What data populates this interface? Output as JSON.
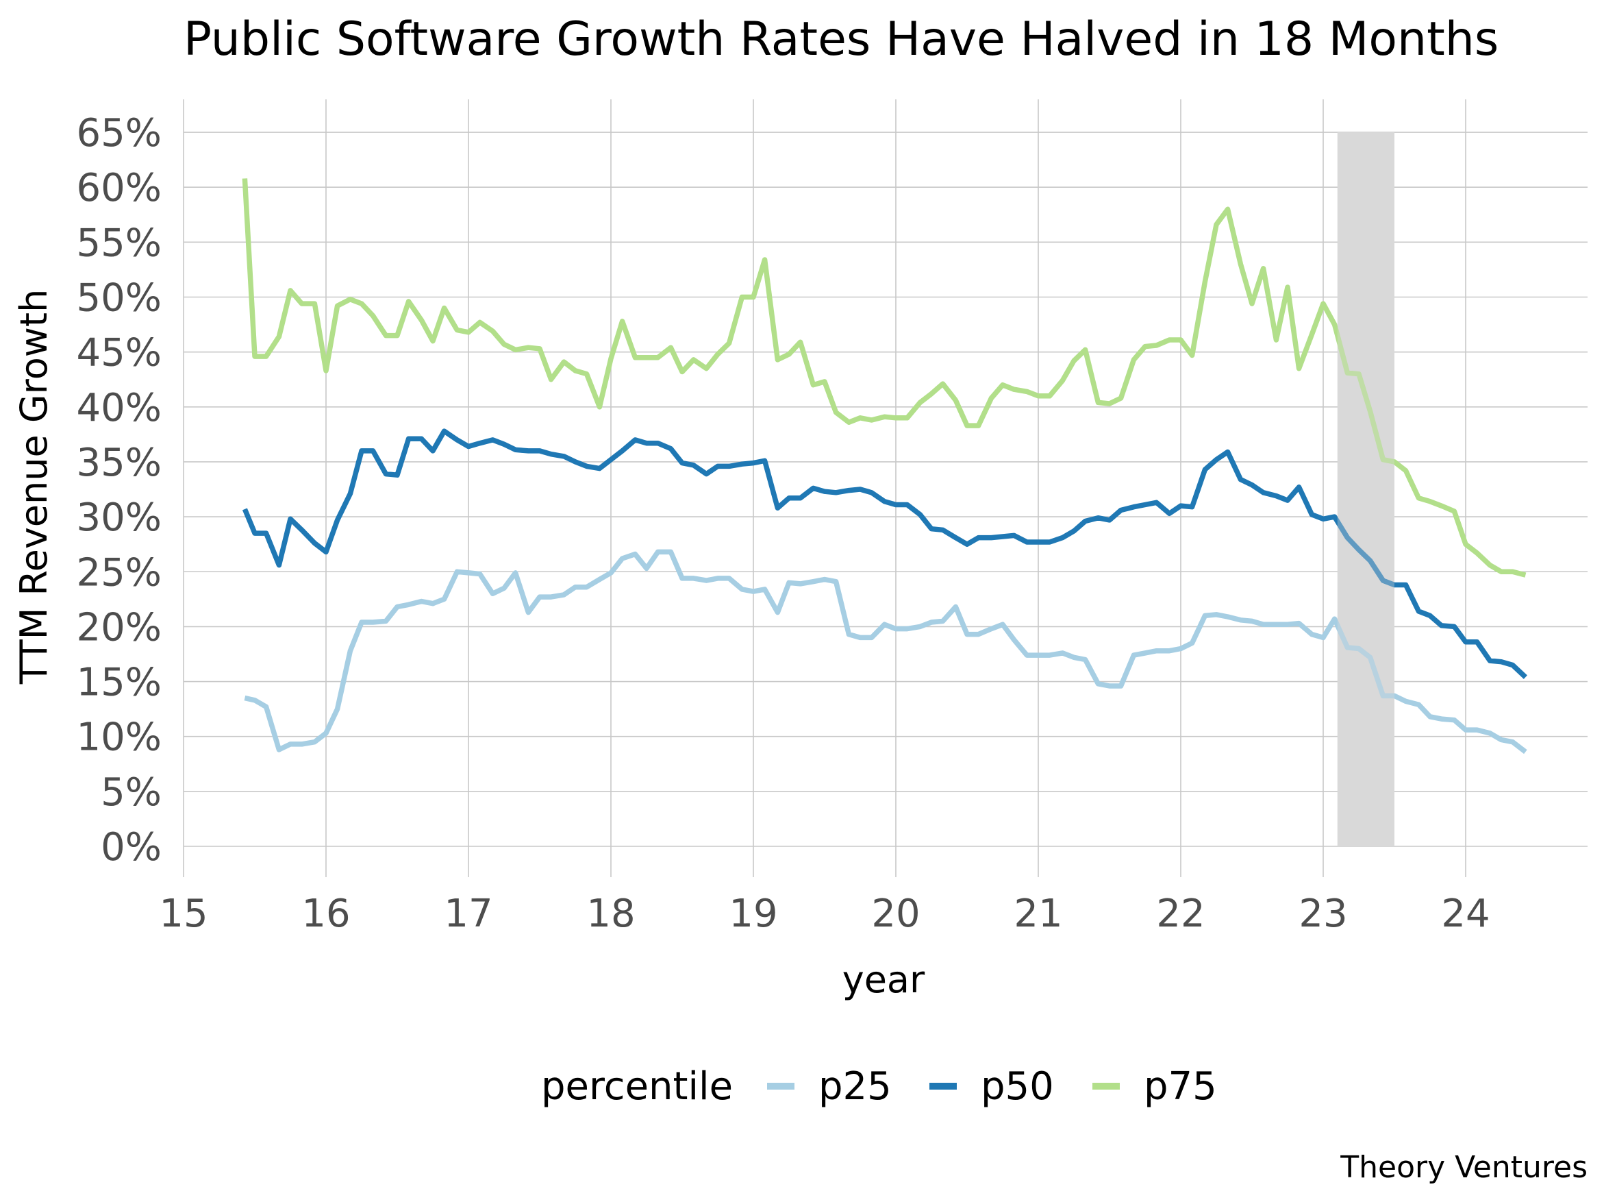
{
  "chart_data": {
    "type": "line",
    "title": "Public Software Growth Rates Have Halved in 18 Months",
    "xlabel": "year",
    "ylabel": "TTM Revenue Growth",
    "x_ticks": [
      "15",
      "16",
      "17",
      "18",
      "19",
      "20",
      "21",
      "22",
      "23",
      "24"
    ],
    "y_ticks": [
      "0%",
      "5%",
      "10%",
      "15%",
      "20%",
      "25%",
      "30%",
      "35%",
      "40%",
      "45%",
      "50%",
      "55%",
      "60%",
      "65%"
    ],
    "xlim": [
      15,
      24.9
    ],
    "ylim": [
      0,
      65
    ],
    "grid": true,
    "legend_title": "percentile",
    "legend_position": "bottom",
    "caption": "Theory Ventures",
    "highlight_band": {
      "x_start": 23.1,
      "x_end": 23.5,
      "color": "#d9d9d9"
    },
    "series": [
      {
        "name": "p25",
        "color": "#a6cee3",
        "x": [
          15.43,
          15.5,
          15.58,
          15.67,
          15.75,
          15.83,
          15.92,
          16.0,
          16.08,
          16.17,
          16.25,
          16.33,
          16.42,
          16.5,
          16.58,
          16.67,
          16.75,
          16.83,
          16.92,
          17.0,
          17.08,
          17.17,
          17.25,
          17.33,
          17.42,
          17.5,
          17.58,
          17.67,
          17.75,
          17.83,
          17.92,
          18.0,
          18.08,
          18.17,
          18.25,
          18.33,
          18.42,
          18.5,
          18.58,
          18.67,
          18.75,
          18.83,
          18.92,
          19.0,
          19.08,
          19.17,
          19.25,
          19.33,
          19.42,
          19.5,
          19.58,
          19.67,
          19.75,
          19.83,
          19.92,
          20.0,
          20.08,
          20.17,
          20.25,
          20.33,
          20.42,
          20.5,
          20.58,
          20.67,
          20.75,
          20.83,
          20.92,
          21.0,
          21.08,
          21.17,
          21.25,
          21.33,
          21.42,
          21.5,
          21.58,
          21.67,
          21.75,
          21.83,
          21.92,
          22.0,
          22.08,
          22.17,
          22.25,
          22.33,
          22.42,
          22.5,
          22.58,
          22.67,
          22.75,
          22.83,
          22.92,
          23.0,
          23.08,
          23.17,
          23.25,
          23.33,
          23.42,
          23.5,
          23.58,
          23.67,
          23.75,
          23.83,
          23.92,
          24.0,
          24.08,
          24.17,
          24.25,
          24.33,
          24.42
        ],
        "values": [
          13.5,
          13.3,
          12.7,
          8.8,
          9.3,
          9.3,
          9.5,
          10.3,
          12.5,
          17.8,
          20.4,
          20.4,
          20.5,
          21.8,
          22.0,
          22.3,
          22.1,
          22.5,
          25.0,
          24.9,
          24.8,
          23.0,
          23.5,
          24.9,
          21.3,
          22.7,
          22.7,
          22.9,
          23.6,
          23.6,
          24.3,
          24.9,
          26.2,
          26.6,
          25.3,
          26.8,
          26.8,
          24.4,
          24.4,
          24.2,
          24.4,
          24.4,
          23.4,
          23.2,
          23.4,
          21.3,
          24.0,
          23.9,
          24.1,
          24.3,
          24.1,
          19.3,
          19.0,
          19.0,
          20.2,
          19.8,
          19.8,
          20.0,
          20.4,
          20.5,
          21.8,
          19.3,
          19.3,
          19.8,
          20.2,
          18.8,
          17.4,
          17.4,
          17.4,
          17.6,
          17.2,
          17.0,
          14.8,
          14.6,
          14.6,
          17.4,
          17.6,
          17.8,
          17.8,
          18.0,
          18.5,
          21.0,
          21.1,
          20.9,
          20.6,
          20.5,
          20.2,
          20.2,
          20.2,
          20.3,
          19.3,
          19.0,
          20.7,
          18.1,
          18.0,
          17.2,
          13.7,
          13.7,
          13.2,
          12.9,
          11.8,
          11.6,
          11.5,
          10.6,
          10.6,
          10.3,
          9.7,
          9.5,
          8.6
        ]
      },
      {
        "name": "p50",
        "color": "#1f78b4",
        "x": [
          15.43,
          15.5,
          15.58,
          15.67,
          15.75,
          15.83,
          15.92,
          16.0,
          16.08,
          16.17,
          16.25,
          16.33,
          16.42,
          16.5,
          16.58,
          16.67,
          16.75,
          16.83,
          16.92,
          17.0,
          17.08,
          17.17,
          17.25,
          17.33,
          17.42,
          17.5,
          17.58,
          17.67,
          17.75,
          17.83,
          17.92,
          18.0,
          18.08,
          18.17,
          18.25,
          18.33,
          18.42,
          18.5,
          18.58,
          18.67,
          18.75,
          18.83,
          18.92,
          19.0,
          19.08,
          19.17,
          19.25,
          19.33,
          19.42,
          19.5,
          19.58,
          19.67,
          19.75,
          19.83,
          19.92,
          20.0,
          20.08,
          20.17,
          20.25,
          20.33,
          20.42,
          20.5,
          20.58,
          20.67,
          20.75,
          20.83,
          20.92,
          21.0,
          21.08,
          21.17,
          21.25,
          21.33,
          21.42,
          21.5,
          21.58,
          21.67,
          21.75,
          21.83,
          21.92,
          22.0,
          22.08,
          22.17,
          22.25,
          22.33,
          22.42,
          22.5,
          22.58,
          22.67,
          22.75,
          22.83,
          22.92,
          23.0,
          23.08,
          23.17,
          23.25,
          23.33,
          23.42,
          23.5,
          23.58,
          23.67,
          23.75,
          23.83,
          23.92,
          24.0,
          24.08,
          24.17,
          24.25,
          24.33,
          24.42
        ],
        "values": [
          30.7,
          28.5,
          28.5,
          25.6,
          29.8,
          28.8,
          27.6,
          26.8,
          29.7,
          32.1,
          36.0,
          36.0,
          33.9,
          33.8,
          37.1,
          37.1,
          36.0,
          37.8,
          37.0,
          36.4,
          36.7,
          37.0,
          36.6,
          36.1,
          36.0,
          36.0,
          35.7,
          35.5,
          35.0,
          34.6,
          34.4,
          35.2,
          36.0,
          37.0,
          36.7,
          36.7,
          36.2,
          34.9,
          34.7,
          33.9,
          34.6,
          34.6,
          34.8,
          34.9,
          35.1,
          30.8,
          31.7,
          31.7,
          32.6,
          32.3,
          32.2,
          32.4,
          32.5,
          32.2,
          31.4,
          31.1,
          31.1,
          30.2,
          28.9,
          28.8,
          28.1,
          27.5,
          28.1,
          28.1,
          28.2,
          28.3,
          27.7,
          27.7,
          27.7,
          28.1,
          28.7,
          29.6,
          29.9,
          29.7,
          30.6,
          30.9,
          31.1,
          31.3,
          30.3,
          31.0,
          30.9,
          34.3,
          35.2,
          35.9,
          33.4,
          32.9,
          32.2,
          31.9,
          31.5,
          32.7,
          30.2,
          29.8,
          30.0,
          28.1,
          27.0,
          26.0,
          24.2,
          23.8,
          23.8,
          21.4,
          21.0,
          20.1,
          20.0,
          18.6,
          18.6,
          16.9,
          16.8,
          16.5,
          15.4
        ]
      },
      {
        "name": "p75",
        "color": "#b2df8a",
        "x": [
          15.43,
          15.5,
          15.58,
          15.67,
          15.75,
          15.83,
          15.92,
          16.0,
          16.08,
          16.17,
          16.25,
          16.33,
          16.42,
          16.5,
          16.58,
          16.67,
          16.75,
          16.83,
          16.92,
          17.0,
          17.08,
          17.17,
          17.25,
          17.33,
          17.42,
          17.5,
          17.58,
          17.67,
          17.75,
          17.83,
          17.92,
          18.0,
          18.08,
          18.17,
          18.25,
          18.33,
          18.42,
          18.5,
          18.58,
          18.67,
          18.75,
          18.83,
          18.92,
          19.0,
          19.08,
          19.17,
          19.25,
          19.33,
          19.42,
          19.5,
          19.58,
          19.67,
          19.75,
          19.83,
          19.92,
          20.0,
          20.08,
          20.17,
          20.25,
          20.33,
          20.42,
          20.5,
          20.58,
          20.67,
          20.75,
          20.83,
          20.92,
          21.0,
          21.08,
          21.17,
          21.25,
          21.33,
          21.42,
          21.5,
          21.58,
          21.67,
          21.75,
          21.83,
          21.92,
          22.0,
          22.08,
          22.17,
          22.25,
          22.33,
          22.42,
          22.5,
          22.58,
          22.67,
          22.75,
          22.83,
          22.92,
          23.0,
          23.08,
          23.17,
          23.25,
          23.33,
          23.42,
          23.5,
          23.58,
          23.67,
          23.75,
          23.83,
          23.92,
          24.0,
          24.08,
          24.17,
          24.25,
          24.33,
          24.42
        ],
        "values": [
          60.8,
          44.6,
          44.6,
          46.4,
          50.6,
          49.4,
          49.4,
          43.3,
          49.2,
          49.8,
          49.4,
          48.3,
          46.5,
          46.5,
          49.6,
          47.9,
          46.0,
          49.0,
          47.0,
          46.8,
          47.7,
          46.9,
          45.7,
          45.2,
          45.4,
          45.3,
          42.5,
          44.1,
          43.3,
          43.0,
          40.0,
          44.4,
          47.8,
          44.5,
          44.5,
          44.5,
          45.4,
          43.2,
          44.3,
          43.5,
          44.8,
          45.8,
          50.0,
          50.0,
          53.4,
          44.3,
          44.8,
          45.9,
          42.0,
          42.3,
          39.5,
          38.6,
          39.0,
          38.8,
          39.1,
          39.0,
          39.0,
          40.4,
          41.2,
          42.1,
          40.6,
          38.3,
          38.3,
          40.8,
          42.0,
          41.6,
          41.4,
          41.0,
          41.0,
          42.4,
          44.2,
          45.2,
          40.4,
          40.3,
          40.8,
          44.3,
          45.5,
          45.6,
          46.1,
          46.1,
          44.7,
          51.4,
          56.6,
          58.0,
          53.0,
          49.4,
          52.6,
          46.1,
          50.9,
          43.5,
          46.6,
          49.4,
          47.5,
          43.1,
          43.0,
          39.6,
          35.2,
          35.0,
          34.2,
          31.7,
          31.4,
          31.0,
          30.5,
          27.5,
          26.7,
          25.6,
          25.0,
          25.0,
          24.7
        ]
      }
    ]
  }
}
